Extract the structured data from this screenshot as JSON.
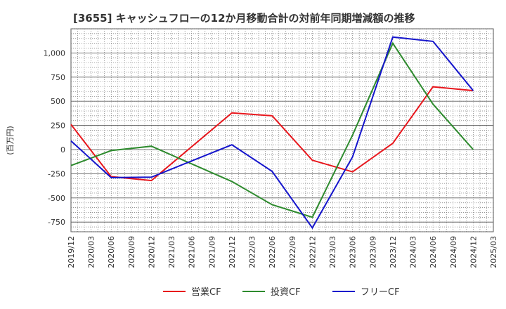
{
  "chart_data": {
    "type": "line",
    "title": "[3655]  キャッシュフローの12か月移動合計の対前年同期増減額の推移",
    "ylabel": "(百万円)",
    "xlabel": "",
    "ylim": [
      -850,
      1250
    ],
    "yticks": [
      1000,
      750,
      500,
      250,
      0,
      -250,
      -500,
      -750
    ],
    "ytick_labels": [
      "1,000",
      "750",
      "500",
      "250",
      "0",
      "-250",
      "-500",
      "-750"
    ],
    "x_tick_labels": [
      "2019/12",
      "2020/03",
      "2020/06",
      "2020/09",
      "2020/12",
      "2021/03",
      "2021/06",
      "2021/09",
      "2021/12",
      "2022/03",
      "2022/06",
      "2022/09",
      "2022/12",
      "2023/03",
      "2023/06",
      "2023/09",
      "2023/12",
      "2024/03",
      "2024/06",
      "2024/09",
      "2024/12",
      "2025/03"
    ],
    "grid": true,
    "series": [
      {
        "name": "営業CF",
        "color": "#e8161c",
        "points": [
          [
            "2019/12",
            260
          ],
          [
            "2020/06",
            -280
          ],
          [
            "2020/12",
            -320
          ],
          [
            "2021/12",
            380
          ],
          [
            "2022/06",
            350
          ],
          [
            "2022/12",
            -110
          ],
          [
            "2023/06",
            -230
          ],
          [
            "2023/12",
            65
          ],
          [
            "2024/06",
            650
          ],
          [
            "2024/12",
            610
          ]
        ]
      },
      {
        "name": "投資CF",
        "color": "#2e8b2e",
        "points": [
          [
            "2019/12",
            -165
          ],
          [
            "2020/06",
            -10
          ],
          [
            "2020/12",
            35
          ],
          [
            "2021/12",
            -330
          ],
          [
            "2022/06",
            -570
          ],
          [
            "2022/12",
            -700
          ],
          [
            "2023/06",
            150
          ],
          [
            "2023/12",
            1100
          ],
          [
            "2024/06",
            470
          ],
          [
            "2024/12",
            0
          ]
        ]
      },
      {
        "name": "フリーCF",
        "color": "#1515cc",
        "points": [
          [
            "2019/12",
            90
          ],
          [
            "2020/06",
            -290
          ],
          [
            "2020/12",
            -285
          ],
          [
            "2021/12",
            50
          ],
          [
            "2022/06",
            -225
          ],
          [
            "2022/12",
            -810
          ],
          [
            "2023/06",
            -75
          ],
          [
            "2023/12",
            1165
          ],
          [
            "2024/06",
            1120
          ],
          [
            "2024/12",
            610
          ]
        ]
      }
    ],
    "legend_position": "bottom"
  }
}
